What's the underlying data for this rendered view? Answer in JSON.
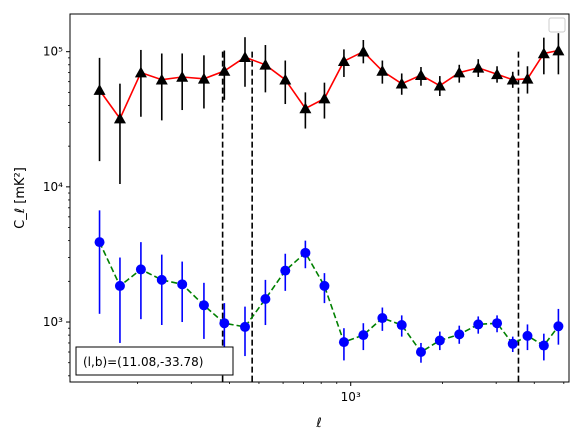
{
  "chart_data": {
    "type": "scatter",
    "xlabel": "ℓ",
    "ylabel": "C_ℓ  [mK²]",
    "xscale": "log",
    "yscale": "log",
    "xlim": [
      120,
      5200
    ],
    "ylim": [
      360,
      190000
    ],
    "xticks": [
      {
        "value": 1000,
        "label": "10³"
      }
    ],
    "yticks": [
      {
        "value": 1000,
        "label": "10³"
      },
      {
        "value": 10000,
        "label": "10⁴"
      },
      {
        "value": 100000,
        "label": "10⁵"
      }
    ],
    "grid": false,
    "legend": "top-right (empty)",
    "vlines": [
      380,
      475,
      3550
    ],
    "annotation": "(l,b)=(11.08,-33.78)",
    "series": [
      {
        "color": "#ff0000",
        "marker_color": "#000000",
        "marker": "triangle",
        "linestyle": "solid",
        "points": [
          {
            "x": 150,
            "y": 52000,
            "lo": 15500,
            "hi": 90000
          },
          {
            "x": 175,
            "y": 32000,
            "lo": 10500,
            "hi": 58000
          },
          {
            "x": 205,
            "y": 70000,
            "lo": 33000,
            "hi": 103000
          },
          {
            "x": 240,
            "y": 62000,
            "lo": 31000,
            "hi": 97000
          },
          {
            "x": 280,
            "y": 65000,
            "lo": 37000,
            "hi": 97000
          },
          {
            "x": 330,
            "y": 63000,
            "lo": 38000,
            "hi": 94000
          },
          {
            "x": 385,
            "y": 72000,
            "lo": 44000,
            "hi": 102000
          },
          {
            "x": 450,
            "y": 91000,
            "lo": 55000,
            "hi": 128000
          },
          {
            "x": 525,
            "y": 80000,
            "lo": 50000,
            "hi": 112000
          },
          {
            "x": 610,
            "y": 62000,
            "lo": 41000,
            "hi": 86000
          },
          {
            "x": 710,
            "y": 38000,
            "lo": 27000,
            "hi": 50000
          },
          {
            "x": 820,
            "y": 45000,
            "lo": 32000,
            "hi": 59000
          },
          {
            "x": 950,
            "y": 85000,
            "lo": 65000,
            "hi": 104000
          },
          {
            "x": 1100,
            "y": 100000,
            "lo": 82000,
            "hi": 122000
          },
          {
            "x": 1270,
            "y": 72000,
            "lo": 58000,
            "hi": 86000
          },
          {
            "x": 1470,
            "y": 58000,
            "lo": 48000,
            "hi": 69000
          },
          {
            "x": 1700,
            "y": 67000,
            "lo": 56000,
            "hi": 77000
          },
          {
            "x": 1960,
            "y": 56000,
            "lo": 47000,
            "hi": 66000
          },
          {
            "x": 2270,
            "y": 70000,
            "lo": 59000,
            "hi": 80000
          },
          {
            "x": 2620,
            "y": 76000,
            "lo": 65000,
            "hi": 88000
          },
          {
            "x": 3020,
            "y": 68000,
            "lo": 59000,
            "hi": 78000
          },
          {
            "x": 3400,
            "y": 62000,
            "lo": 54000,
            "hi": 71000
          },
          {
            "x": 3800,
            "y": 63000,
            "lo": 49000,
            "hi": 78000
          },
          {
            "x": 4300,
            "y": 97000,
            "lo": 68000,
            "hi": 127000
          },
          {
            "x": 4800,
            "y": 102000,
            "lo": 68000,
            "hi": 137000
          }
        ]
      },
      {
        "color": "#008000",
        "marker_color": "#0000ff",
        "marker": "circle",
        "linestyle": "dashed",
        "points": [
          {
            "x": 150,
            "y": 3900,
            "lo": 1150,
            "hi": 6700
          },
          {
            "x": 175,
            "y": 1850,
            "lo": 700,
            "hi": 3000
          },
          {
            "x": 205,
            "y": 2450,
            "lo": 1050,
            "hi": 3900
          },
          {
            "x": 240,
            "y": 2050,
            "lo": 950,
            "hi": 3150
          },
          {
            "x": 280,
            "y": 1900,
            "lo": 1000,
            "hi": 2800
          },
          {
            "x": 330,
            "y": 1330,
            "lo": 750,
            "hi": 1950
          },
          {
            "x": 385,
            "y": 980,
            "lo": 600,
            "hi": 1380
          },
          {
            "x": 450,
            "y": 920,
            "lo": 560,
            "hi": 1300
          },
          {
            "x": 525,
            "y": 1480,
            "lo": 950,
            "hi": 2050
          },
          {
            "x": 610,
            "y": 2400,
            "lo": 1700,
            "hi": 3200
          },
          {
            "x": 710,
            "y": 3250,
            "lo": 2500,
            "hi": 4000
          },
          {
            "x": 820,
            "y": 1850,
            "lo": 1380,
            "hi": 2300
          },
          {
            "x": 950,
            "y": 710,
            "lo": 520,
            "hi": 900
          },
          {
            "x": 1100,
            "y": 800,
            "lo": 620,
            "hi": 980
          },
          {
            "x": 1270,
            "y": 1070,
            "lo": 860,
            "hi": 1280
          },
          {
            "x": 1470,
            "y": 950,
            "lo": 780,
            "hi": 1120
          },
          {
            "x": 1700,
            "y": 600,
            "lo": 500,
            "hi": 700
          },
          {
            "x": 1960,
            "y": 730,
            "lo": 620,
            "hi": 850
          },
          {
            "x": 2270,
            "y": 810,
            "lo": 690,
            "hi": 940
          },
          {
            "x": 2620,
            "y": 960,
            "lo": 820,
            "hi": 1100
          },
          {
            "x": 3020,
            "y": 980,
            "lo": 840,
            "hi": 1120
          },
          {
            "x": 3400,
            "y": 690,
            "lo": 600,
            "hi": 780
          },
          {
            "x": 3800,
            "y": 790,
            "lo": 620,
            "hi": 960
          },
          {
            "x": 4300,
            "y": 670,
            "lo": 520,
            "hi": 820
          },
          {
            "x": 4800,
            "y": 930,
            "lo": 680,
            "hi": 1250
          }
        ]
      }
    ]
  }
}
